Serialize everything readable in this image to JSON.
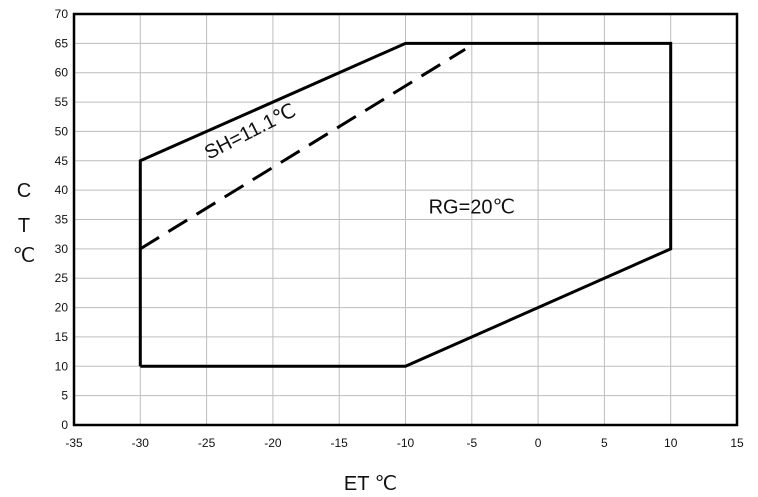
{
  "chart_data": {
    "type": "line",
    "xlabel": "ET ℃",
    "ylabel_chars": [
      "C",
      "T",
      "℃"
    ],
    "xlim": [
      -35,
      15
    ],
    "ylim": [
      0,
      70
    ],
    "x_ticks": [
      -35,
      -30,
      -25,
      -20,
      -15,
      -10,
      -5,
      0,
      5,
      10,
      15
    ],
    "y_ticks": [
      0,
      5,
      10,
      15,
      20,
      25,
      30,
      35,
      40,
      45,
      50,
      55,
      60,
      65,
      70
    ],
    "grid": true,
    "series": [
      {
        "style": "solid",
        "color": "#000000",
        "points": [
          [
            -30,
            10
          ],
          [
            -10,
            10
          ],
          [
            10,
            30
          ],
          [
            10,
            65
          ],
          [
            -10,
            65
          ],
          [
            -30,
            45
          ],
          [
            -30,
            10
          ]
        ]
      },
      {
        "style": "dashed",
        "color": "#000000",
        "points": [
          [
            -30,
            30
          ],
          [
            -5.5,
            64
          ]
        ]
      }
    ],
    "annotations": [
      {
        "text": "SH=11.1℃",
        "x": -21.5,
        "y": 49,
        "angle": -27
      },
      {
        "text": "RG=20℃",
        "x": -5,
        "y": 36,
        "angle": 0
      }
    ]
  }
}
